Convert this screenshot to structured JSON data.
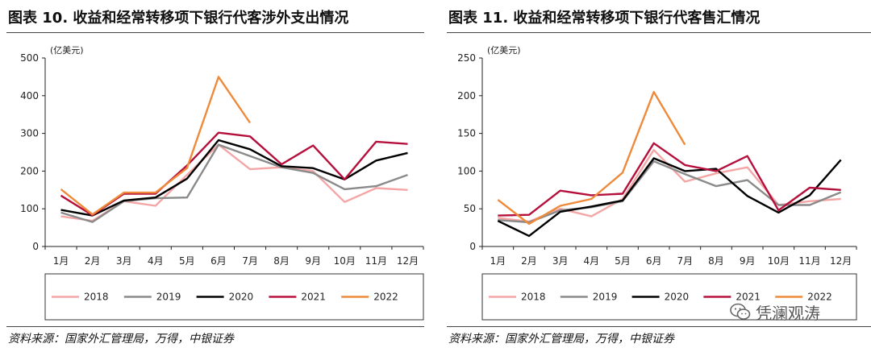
{
  "left": {
    "title": "图表 10. 收益和经常转移项下银行代客涉外支出情况",
    "source": "资料来源：国家外汇管理局，万得，中银证券"
  },
  "right": {
    "title": "图表 11. 收益和经常转移项下银行代客售汇情况",
    "source": "资料来源：国家外汇管理局，万得，中银证券"
  },
  "watermark": {
    "text": "凭澜观涛",
    "icon": "wechat-icon"
  },
  "chart_data": [
    {
      "type": "line",
      "title": "图表 10. 收益和经常转移项下银行代客涉外支出情况",
      "ylabel": "(亿美元)",
      "xlabel": "",
      "ylim": [
        0,
        500
      ],
      "yticks": [
        0,
        100,
        200,
        300,
        400,
        500
      ],
      "categories": [
        "1月",
        "2月",
        "3月",
        "4月",
        "5月",
        "6月",
        "7月",
        "8月",
        "9月",
        "10月",
        "11月",
        "12月"
      ],
      "grid": false,
      "legend_position": "bottom",
      "series": [
        {
          "name": "2018",
          "color": "#f4a6a6",
          "values": [
            80,
            68,
            120,
            108,
            190,
            270,
            205,
            210,
            200,
            118,
            155,
            150
          ]
        },
        {
          "name": "2019",
          "color": "#8a8a8a",
          "values": [
            90,
            65,
            120,
            128,
            130,
            270,
            240,
            210,
            195,
            152,
            160,
            190
          ]
        },
        {
          "name": "2020",
          "color": "#000000",
          "values": [
            97,
            82,
            122,
            130,
            180,
            282,
            258,
            213,
            208,
            178,
            228,
            248
          ]
        },
        {
          "name": "2021",
          "color": "#b5103c",
          "values": [
            135,
            83,
            140,
            140,
            215,
            302,
            292,
            218,
            268,
            178,
            278,
            272
          ]
        },
        {
          "name": "2022",
          "color": "#ee8a3a",
          "values": [
            152,
            85,
            143,
            143,
            208,
            450,
            328,
            null,
            null,
            null,
            null,
            null
          ]
        }
      ]
    },
    {
      "type": "line",
      "title": "图表 11. 收益和经常转移项下银行代客售汇情况",
      "ylabel": "(亿美元)",
      "xlabel": "",
      "ylim": [
        0,
        250
      ],
      "yticks": [
        0,
        50,
        100,
        150,
        200,
        250
      ],
      "categories": [
        "1月",
        "2月",
        "3月",
        "4月",
        "5月",
        "6月",
        "7月",
        "8月",
        "9月",
        "10月",
        "11月",
        "12月"
      ],
      "grid": false,
      "legend_position": "bottom",
      "series": [
        {
          "name": "2018",
          "color": "#f4a6a6",
          "values": [
            38,
            33,
            50,
            40,
            63,
            128,
            86,
            97,
            105,
            55,
            60,
            63
          ]
        },
        {
          "name": "2019",
          "color": "#8a8a8a",
          "values": [
            35,
            32,
            48,
            52,
            60,
            113,
            96,
            80,
            88,
            55,
            55,
            72
          ]
        },
        {
          "name": "2020",
          "color": "#000000",
          "values": [
            34,
            14,
            46,
            53,
            61,
            117,
            100,
            103,
            67,
            45,
            68,
            115
          ]
        },
        {
          "name": "2021",
          "color": "#b5103c",
          "values": [
            41,
            42,
            74,
            68,
            70,
            137,
            108,
            100,
            120,
            48,
            78,
            75
          ]
        },
        {
          "name": "2022",
          "color": "#ee8a3a",
          "values": [
            62,
            30,
            54,
            63,
            98,
            205,
            135,
            null,
            null,
            null,
            null,
            null
          ]
        }
      ]
    }
  ]
}
